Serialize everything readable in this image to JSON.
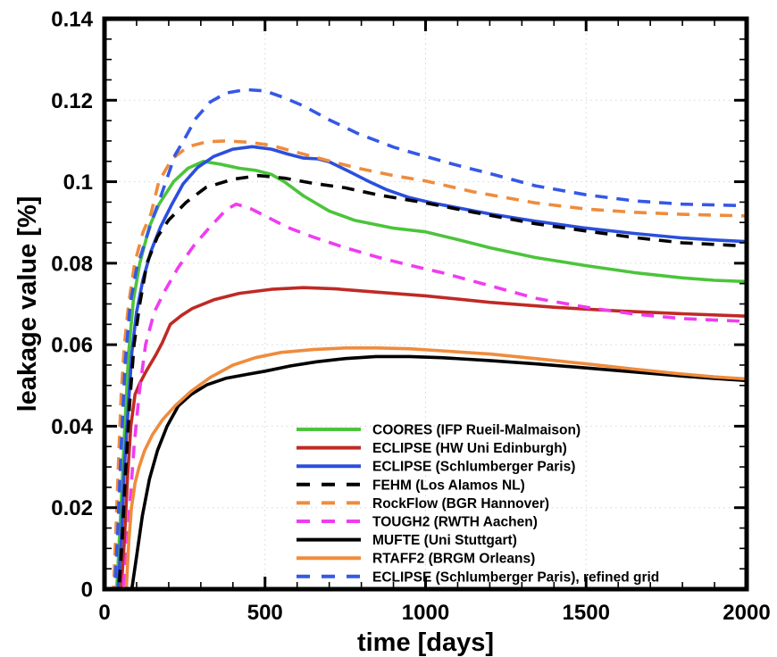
{
  "chart_data": {
    "type": "line",
    "title": "",
    "xlabel": "time [days]",
    "ylabel": "leakage value [%]",
    "xlim": [
      0,
      2000
    ],
    "ylim": [
      0,
      0.14
    ],
    "x_major_ticks": [
      0,
      500,
      1000,
      1500,
      2000
    ],
    "x_tick_labels": [
      "0",
      "500",
      "1000",
      "1500",
      "2000"
    ],
    "x_minor_step": 100,
    "y_major_ticks": [
      0,
      0.02,
      0.04,
      0.06,
      0.08,
      0.1,
      0.12,
      0.14
    ],
    "y_tick_labels": [
      "0",
      "0.02",
      "0.04",
      "0.06",
      "0.08",
      "0.1",
      "0.12",
      "0.14"
    ],
    "y_minor_step": 0.005,
    "grid": true,
    "grid_color": "#d6d6d6",
    "axis_color": "#000000",
    "background": "#ffffff",
    "legend_position": "inside-bottom-center",
    "series": [
      {
        "name": "COORES (IFP Rueil-Malmaison)",
        "color": "#4cc43b",
        "dashed": false,
        "points": [
          [
            0,
            0
          ],
          [
            38,
            0
          ],
          [
            50,
            0.018
          ],
          [
            60,
            0.035
          ],
          [
            75,
            0.058
          ],
          [
            90,
            0.071
          ],
          [
            110,
            0.08
          ],
          [
            140,
            0.089
          ],
          [
            170,
            0.0945
          ],
          [
            215,
            0.1
          ],
          [
            260,
            0.1033
          ],
          [
            308,
            0.105
          ],
          [
            360,
            0.1043
          ],
          [
            420,
            0.1033
          ],
          [
            470,
            0.1028
          ],
          [
            520,
            0.1018
          ],
          [
            560,
            0.1
          ],
          [
            620,
            0.0965
          ],
          [
            700,
            0.0928
          ],
          [
            780,
            0.0905
          ],
          [
            900,
            0.0886
          ],
          [
            1000,
            0.0877
          ],
          [
            1100,
            0.0858
          ],
          [
            1200,
            0.0838
          ],
          [
            1342,
            0.0814
          ],
          [
            1500,
            0.0794
          ],
          [
            1650,
            0.0777
          ],
          [
            1800,
            0.0764
          ],
          [
            1900,
            0.0758
          ],
          [
            2000,
            0.0755
          ]
        ]
      },
      {
        "name": "ECLIPSE (HW Uni Edinburgh)",
        "color": "#bf2a25",
        "dashed": false,
        "points": [
          [
            0,
            0
          ],
          [
            52,
            0
          ],
          [
            62,
            0.012
          ],
          [
            72,
            0.028
          ],
          [
            82,
            0.04
          ],
          [
            95,
            0.0478
          ],
          [
            110,
            0.0505
          ],
          [
            130,
            0.0535
          ],
          [
            160,
            0.0575
          ],
          [
            180,
            0.0605
          ],
          [
            205,
            0.065
          ],
          [
            240,
            0.0672
          ],
          [
            274,
            0.0689
          ],
          [
            340,
            0.071
          ],
          [
            420,
            0.0726
          ],
          [
            520,
            0.0736
          ],
          [
            620,
            0.074
          ],
          [
            720,
            0.0737
          ],
          [
            850,
            0.0729
          ],
          [
            1000,
            0.072
          ],
          [
            1200,
            0.0704
          ],
          [
            1400,
            0.0692
          ],
          [
            1600,
            0.0683
          ],
          [
            1800,
            0.0676
          ],
          [
            2000,
            0.067
          ]
        ]
      },
      {
        "name": "ECLIPSE (Schlumberger Paris)",
        "color": "#2b4fdb",
        "dashed": false,
        "points": [
          [
            0,
            0
          ],
          [
            42,
            0
          ],
          [
            52,
            0.012
          ],
          [
            62,
            0.03
          ],
          [
            72,
            0.042
          ],
          [
            85,
            0.058
          ],
          [
            100,
            0.068
          ],
          [
            120,
            0.076
          ],
          [
            145,
            0.083
          ],
          [
            175,
            0.089
          ],
          [
            210,
            0.0945
          ],
          [
            245,
            0.0995
          ],
          [
            290,
            0.1035
          ],
          [
            340,
            0.1062
          ],
          [
            400,
            0.108
          ],
          [
            460,
            0.1086
          ],
          [
            520,
            0.108
          ],
          [
            570,
            0.1068
          ],
          [
            620,
            0.1058
          ],
          [
            665,
            0.1056
          ],
          [
            700,
            0.1049
          ],
          [
            760,
            0.1026
          ],
          [
            820,
            0.1002
          ],
          [
            880,
            0.098
          ],
          [
            950,
            0.0961
          ],
          [
            1020,
            0.0948
          ],
          [
            1100,
            0.0936
          ],
          [
            1200,
            0.0921
          ],
          [
            1342,
            0.0903
          ],
          [
            1500,
            0.0886
          ],
          [
            1650,
            0.0873
          ],
          [
            1800,
            0.0862
          ],
          [
            1900,
            0.0857
          ],
          [
            2000,
            0.0853
          ]
        ]
      },
      {
        "name": "FEHM (Los Alamos NL)",
        "color": "#000000",
        "dashed": true,
        "points": [
          [
            0,
            0
          ],
          [
            45,
            0
          ],
          [
            55,
            0.012
          ],
          [
            65,
            0.028
          ],
          [
            78,
            0.045
          ],
          [
            92,
            0.06
          ],
          [
            110,
            0.07
          ],
          [
            132,
            0.08
          ],
          [
            165,
            0.0865
          ],
          [
            200,
            0.0906
          ],
          [
            255,
            0.095
          ],
          [
            316,
            0.0986
          ],
          [
            400,
            0.1006
          ],
          [
            480,
            0.1015
          ],
          [
            560,
            0.1009
          ],
          [
            650,
            0.0996
          ],
          [
            750,
            0.0985
          ],
          [
            850,
            0.0968
          ],
          [
            1000,
            0.0948
          ],
          [
            1150,
            0.0925
          ],
          [
            1342,
            0.0897
          ],
          [
            1500,
            0.0879
          ],
          [
            1650,
            0.0863
          ],
          [
            1800,
            0.085
          ],
          [
            2000,
            0.0842
          ]
        ]
      },
      {
        "name": "RockFlow (BGR Hannover)",
        "color": "#ef8c3d",
        "dashed": true,
        "points": [
          [
            0,
            0
          ],
          [
            28,
            0
          ],
          [
            36,
            0.015
          ],
          [
            44,
            0.032
          ],
          [
            52,
            0.048
          ],
          [
            62,
            0.06
          ],
          [
            75,
            0.07
          ],
          [
            94,
            0.08
          ],
          [
            120,
            0.0876
          ],
          [
            145,
            0.0922
          ],
          [
            169,
            0.1
          ],
          [
            210,
            0.1056
          ],
          [
            260,
            0.1086
          ],
          [
            320,
            0.1098
          ],
          [
            380,
            0.11
          ],
          [
            450,
            0.1097
          ],
          [
            520,
            0.1089
          ],
          [
            600,
            0.1072
          ],
          [
            700,
            0.1051
          ],
          [
            790,
            0.1033
          ],
          [
            900,
            0.1015
          ],
          [
            1000,
            0.1002
          ],
          [
            1150,
            0.0975
          ],
          [
            1342,
            0.0948
          ],
          [
            1500,
            0.0933
          ],
          [
            1650,
            0.0925
          ],
          [
            1800,
            0.092
          ],
          [
            2000,
            0.0916
          ]
        ]
      },
      {
        "name": "TOUGH2 (RWTH Aachen)",
        "color": "#f03cf0",
        "dashed": true,
        "points": [
          [
            0,
            0
          ],
          [
            58,
            0
          ],
          [
            70,
            0.01
          ],
          [
            80,
            0.022
          ],
          [
            92,
            0.035
          ],
          [
            108,
            0.048
          ],
          [
            128,
            0.06
          ],
          [
            155,
            0.068
          ],
          [
            190,
            0.0735
          ],
          [
            230,
            0.079
          ],
          [
            280,
            0.0845
          ],
          [
            330,
            0.089
          ],
          [
            380,
            0.0932
          ],
          [
            410,
            0.0945
          ],
          [
            450,
            0.0936
          ],
          [
            500,
            0.0916
          ],
          [
            570,
            0.0888
          ],
          [
            650,
            0.0864
          ],
          [
            750,
            0.0838
          ],
          [
            850,
            0.0815
          ],
          [
            950,
            0.0795
          ],
          [
            1050,
            0.0777
          ],
          [
            1200,
            0.0745
          ],
          [
            1342,
            0.0714
          ],
          [
            1500,
            0.0692
          ],
          [
            1650,
            0.0675
          ],
          [
            1800,
            0.0664
          ],
          [
            2000,
            0.0657
          ]
        ]
      },
      {
        "name": "MUFTE (Uni Stuttgart)",
        "color": "#000000",
        "dashed": false,
        "points": [
          [
            0,
            0
          ],
          [
            85,
            0
          ],
          [
            100,
            0.008
          ],
          [
            118,
            0.018
          ],
          [
            140,
            0.027
          ],
          [
            165,
            0.034
          ],
          [
            195,
            0.04
          ],
          [
            230,
            0.045
          ],
          [
            270,
            0.0478
          ],
          [
            320,
            0.0502
          ],
          [
            380,
            0.0518
          ],
          [
            450,
            0.0528
          ],
          [
            500,
            0.0535
          ],
          [
            580,
            0.0548
          ],
          [
            660,
            0.0558
          ],
          [
            750,
            0.0566
          ],
          [
            845,
            0.0571
          ],
          [
            950,
            0.0571
          ],
          [
            1050,
            0.0568
          ],
          [
            1200,
            0.0561
          ],
          [
            1342,
            0.0553
          ],
          [
            1500,
            0.0543
          ],
          [
            1650,
            0.0533
          ],
          [
            1800,
            0.0523
          ],
          [
            1900,
            0.0517
          ],
          [
            2000,
            0.0512
          ]
        ]
      },
      {
        "name": "RTAFF2 (BRGM Orleans)",
        "color": "#ef8c3d",
        "dashed": false,
        "points": [
          [
            0,
            0
          ],
          [
            68,
            0
          ],
          [
            76,
            0.012
          ],
          [
            84,
            0.02
          ],
          [
            95,
            0.026
          ],
          [
            108,
            0.03
          ],
          [
            125,
            0.034
          ],
          [
            150,
            0.038
          ],
          [
            180,
            0.0415
          ],
          [
            220,
            0.045
          ],
          [
            270,
            0.0486
          ],
          [
            330,
            0.052
          ],
          [
            400,
            0.055
          ],
          [
            470,
            0.0568
          ],
          [
            550,
            0.0581
          ],
          [
            650,
            0.0588
          ],
          [
            750,
            0.0592
          ],
          [
            850,
            0.0592
          ],
          [
            950,
            0.059
          ],
          [
            1050,
            0.0585
          ],
          [
            1200,
            0.0577
          ],
          [
            1342,
            0.0566
          ],
          [
            1500,
            0.0553
          ],
          [
            1650,
            0.054
          ],
          [
            1800,
            0.0528
          ],
          [
            1900,
            0.0521
          ],
          [
            2000,
            0.0516
          ]
        ]
      },
      {
        "name": "ECLIPSE (Schlumberger Paris), refined grid",
        "color": "#3558e6",
        "dashed": true,
        "points": [
          [
            0,
            0
          ],
          [
            32,
            0
          ],
          [
            42,
            0.015
          ],
          [
            52,
            0.035
          ],
          [
            64,
            0.055
          ],
          [
            80,
            0.07
          ],
          [
            100,
            0.0786
          ],
          [
            120,
            0.0836
          ],
          [
            145,
            0.0898
          ],
          [
            170,
            0.0952
          ],
          [
            191,
            0.1
          ],
          [
            220,
            0.1066
          ],
          [
            250,
            0.1106
          ],
          [
            285,
            0.1156
          ],
          [
            330,
            0.1196
          ],
          [
            380,
            0.1218
          ],
          [
            440,
            0.1226
          ],
          [
            500,
            0.1223
          ],
          [
            560,
            0.1206
          ],
          [
            620,
            0.1186
          ],
          [
            700,
            0.1152
          ],
          [
            790,
            0.1118
          ],
          [
            900,
            0.1085
          ],
          [
            1000,
            0.1062
          ],
          [
            1100,
            0.104
          ],
          [
            1200,
            0.102
          ],
          [
            1342,
            0.099
          ],
          [
            1500,
            0.0968
          ],
          [
            1650,
            0.0953
          ],
          [
            1800,
            0.0945
          ],
          [
            2000,
            0.0941
          ]
        ]
      }
    ]
  }
}
